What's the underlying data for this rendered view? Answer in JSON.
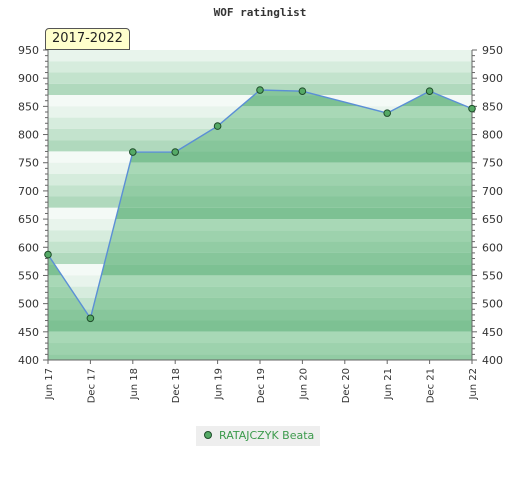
{
  "chart_data": {
    "type": "area",
    "title": "WOF ratinglist",
    "period_label": "2017-2022",
    "categories": [
      "Jun 17",
      "Dec 17",
      "Jun 18",
      "Dec 18",
      "Jun 19",
      "Dec 19",
      "Jun 20",
      "Dec 20",
      "Jun 21",
      "Dec 21",
      "Jun 22"
    ],
    "series": [
      {
        "name": "RATAJCZYK Beata",
        "color": "#55aa66",
        "line_color": "#5b8fd6",
        "values": [
          587,
          474,
          769,
          769,
          815,
          879,
          877,
          null,
          838,
          877,
          846
        ]
      }
    ],
    "ylim": [
      400,
      950
    ],
    "yticks": [
      400,
      450,
      500,
      550,
      600,
      650,
      700,
      750,
      800,
      850,
      900,
      950
    ],
    "legend_position": "bottom",
    "grid": true
  }
}
